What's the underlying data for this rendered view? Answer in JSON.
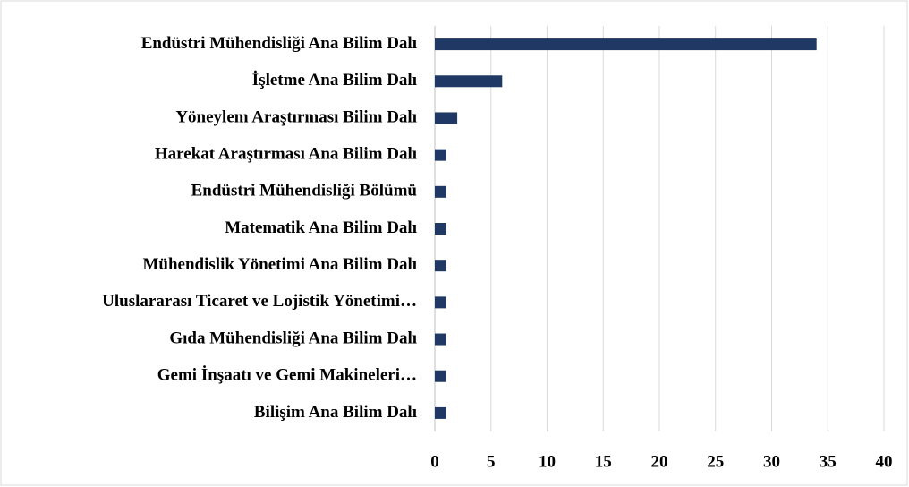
{
  "chart_data": {
    "type": "bar",
    "orientation": "horizontal",
    "categories": [
      "Endüstri Mühendisliği Ana Bilim Dalı",
      "İşletme Ana Bilim Dalı",
      "Yöneylem Araştırması Bilim Dalı",
      "Harekat Araştırması Ana Bilim Dalı",
      "Endüstri Mühendisliği Bölümü",
      "Matematik Ana Bilim Dalı",
      "Mühendislik Yönetimi Ana Bilim Dalı",
      "Uluslararası Ticaret ve Lojistik Yönetimi…",
      "Gıda Mühendisliği Ana Bilim Dalı",
      "Gemi İnşaatı ve Gemi Makineleri…",
      "Bilişim Ana Bilim Dalı"
    ],
    "values": [
      34,
      6,
      2,
      1,
      1,
      1,
      1,
      1,
      1,
      1,
      1
    ],
    "color": "#1f3864",
    "xlim": [
      0,
      40
    ],
    "xticks": [
      0,
      5,
      10,
      15,
      20,
      25,
      30,
      35,
      40
    ],
    "grid": true
  }
}
